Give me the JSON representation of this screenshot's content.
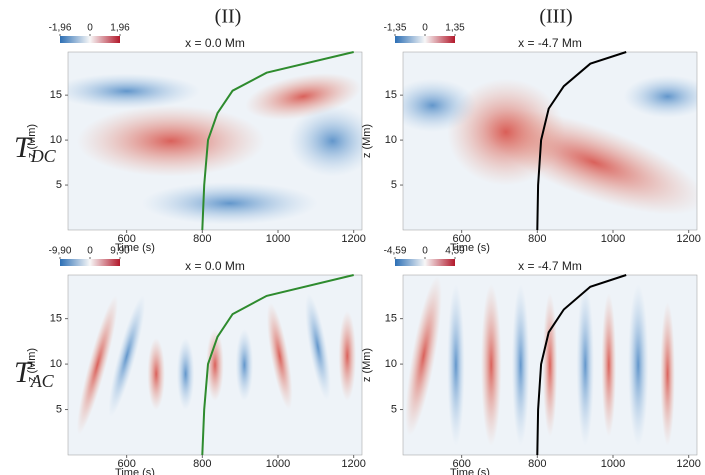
{
  "columns": [
    "(II)",
    "(III)"
  ],
  "rows": [
    {
      "symbol": "T",
      "subscript": "DC"
    },
    {
      "symbol": "T",
      "subscript": "AC"
    }
  ],
  "chart_data": [
    {
      "type": "heatmap",
      "title": "x = 0.0 Mm",
      "xlabel": "Time (s)",
      "ylabel": "z (Mm)",
      "xlim": [
        445,
        1222
      ],
      "ylim": [
        0,
        19.8
      ],
      "xticks": [
        600,
        800,
        1000,
        1200
      ],
      "yticks": [
        5,
        10,
        15
      ],
      "colorbar": {
        "range": [
          -1.96,
          1.96
        ],
        "ticks": [
          {
            "value": -1.96,
            "label": "-1,96"
          },
          0,
          {
            "value": 1.96,
            "label": "1,96"
          }
        ]
      },
      "curve": {
        "color": "#2e8b2e",
        "x": [
          800,
          805,
          815,
          840,
          880,
          970,
          1200
        ],
        "y": [
          0,
          5,
          10,
          13,
          15.5,
          17.5,
          19.8
        ]
      }
    },
    {
      "type": "heatmap",
      "title": "x = -4.7 Mm",
      "xlabel": "Time (s)",
      "ylabel": "z (Mm)",
      "xlim": [
        445,
        1222
      ],
      "ylim": [
        0,
        19.8
      ],
      "xticks": [
        600,
        800,
        1000,
        1200
      ],
      "yticks": [
        5,
        10,
        15
      ],
      "colorbar": {
        "range": [
          -1.35,
          1.35
        ],
        "ticks": [
          {
            "value": -1.35,
            "label": "-1,35"
          },
          0,
          {
            "value": 1.35,
            "label": "1,35"
          }
        ]
      },
      "curve": {
        "color": "#000000",
        "x": [
          800,
          802,
          810,
          830,
          870,
          940,
          1035
        ],
        "y": [
          0,
          5,
          10,
          13.5,
          16,
          18.5,
          19.8
        ]
      }
    },
    {
      "type": "heatmap",
      "title": "x = 0.0 Mm",
      "xlabel": "Time (s)",
      "ylabel": "z (Mm)",
      "xlim": [
        445,
        1222
      ],
      "ylim": [
        0,
        19.8
      ],
      "xticks": [
        600,
        800,
        1000,
        1200
      ],
      "yticks": [
        5,
        10,
        15
      ],
      "colorbar": {
        "range": [
          -9.9,
          9.9
        ],
        "ticks": [
          {
            "value": -9.9,
            "label": "-9,90"
          },
          0,
          {
            "value": 9.9,
            "label": "9,90"
          }
        ]
      },
      "curve": {
        "color": "#2e8b2e",
        "x": [
          800,
          805,
          815,
          840,
          880,
          970,
          1200
        ],
        "y": [
          0,
          5,
          10,
          13,
          15.5,
          17.5,
          19.8
        ]
      }
    },
    {
      "type": "heatmap",
      "title": "x = -4.7 Mm",
      "xlabel": "Time (s)",
      "ylabel": "z (Mm)",
      "xlim": [
        445,
        1222
      ],
      "ylim": [
        0,
        19.8
      ],
      "xticks": [
        600,
        800,
        1000,
        1200
      ],
      "yticks": [
        5,
        10,
        15
      ],
      "colorbar": {
        "range": [
          -4.59,
          4.59
        ],
        "ticks": [
          {
            "value": -4.59,
            "label": "-4,59"
          },
          0,
          {
            "value": 4.59,
            "label": "4,59"
          }
        ]
      },
      "curve": {
        "color": "#000000",
        "x": [
          800,
          802,
          810,
          830,
          870,
          940,
          1035
        ],
        "y": [
          0,
          5,
          10,
          13.5,
          16,
          18.5,
          19.8
        ]
      }
    }
  ]
}
